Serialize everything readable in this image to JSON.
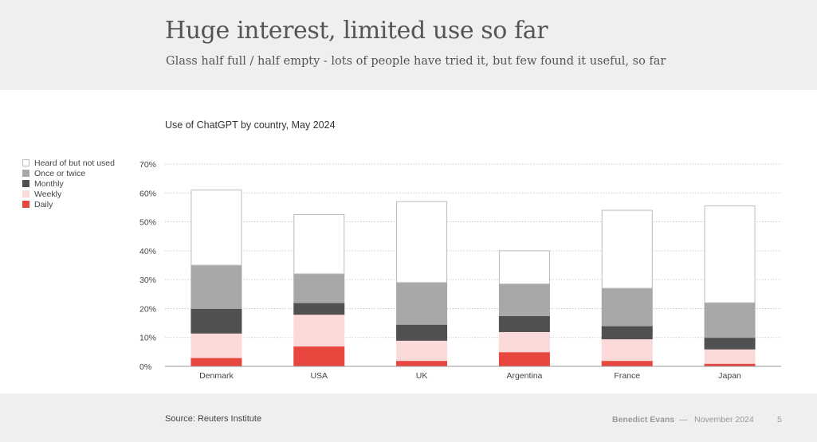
{
  "slide": {
    "title": "Huge interest, limited use so far",
    "subtitle": "Glass half full / half empty - lots of people have tried it, but few found it useful, so far"
  },
  "footer": {
    "source": "Source: Reuters Institute",
    "author": "Benedict Evans",
    "separator": "—",
    "date": "November 2024",
    "page": "5"
  },
  "chart_data": {
    "type": "bar",
    "stacked": true,
    "title": "Use of ChatGPT by country, May 2024",
    "xlabel": "",
    "ylabel": "",
    "ylim": [
      0,
      70
    ],
    "y_ticks": [
      0,
      10,
      20,
      30,
      40,
      50,
      60,
      70
    ],
    "y_tick_labels": [
      "0%",
      "10%",
      "20%",
      "30%",
      "40%",
      "50%",
      "60%",
      "70%"
    ],
    "grid": true,
    "legend_position": "left",
    "categories": [
      "Denmark",
      "USA",
      "UK",
      "Argentina",
      "France",
      "Japan"
    ],
    "series": [
      {
        "name": "Daily",
        "color": "#e8473f",
        "border": "#e8473f",
        "values": [
          3,
          7,
          2,
          5,
          2,
          1
        ]
      },
      {
        "name": "Weekly",
        "color": "#fddada",
        "border": "#fddada",
        "values": [
          8.5,
          11,
          7,
          7,
          7.5,
          5
        ]
      },
      {
        "name": "Monthly",
        "color": "#505050",
        "border": "#505050",
        "values": [
          8.5,
          4,
          5.5,
          5.5,
          4.5,
          4
        ]
      },
      {
        "name": "Once or twice",
        "color": "#a8a8a8",
        "border": "#a8a8a8",
        "values": [
          15,
          10,
          14.5,
          11,
          13,
          12
        ]
      },
      {
        "name": "Heard of but not used",
        "color": "#ffffff",
        "border": "#bbbbbb",
        "values": [
          26,
          20.5,
          28,
          11.5,
          27,
          33.5
        ]
      }
    ],
    "legend_order": [
      "Heard of but not used",
      "Once or twice",
      "Monthly",
      "Weekly",
      "Daily"
    ]
  }
}
